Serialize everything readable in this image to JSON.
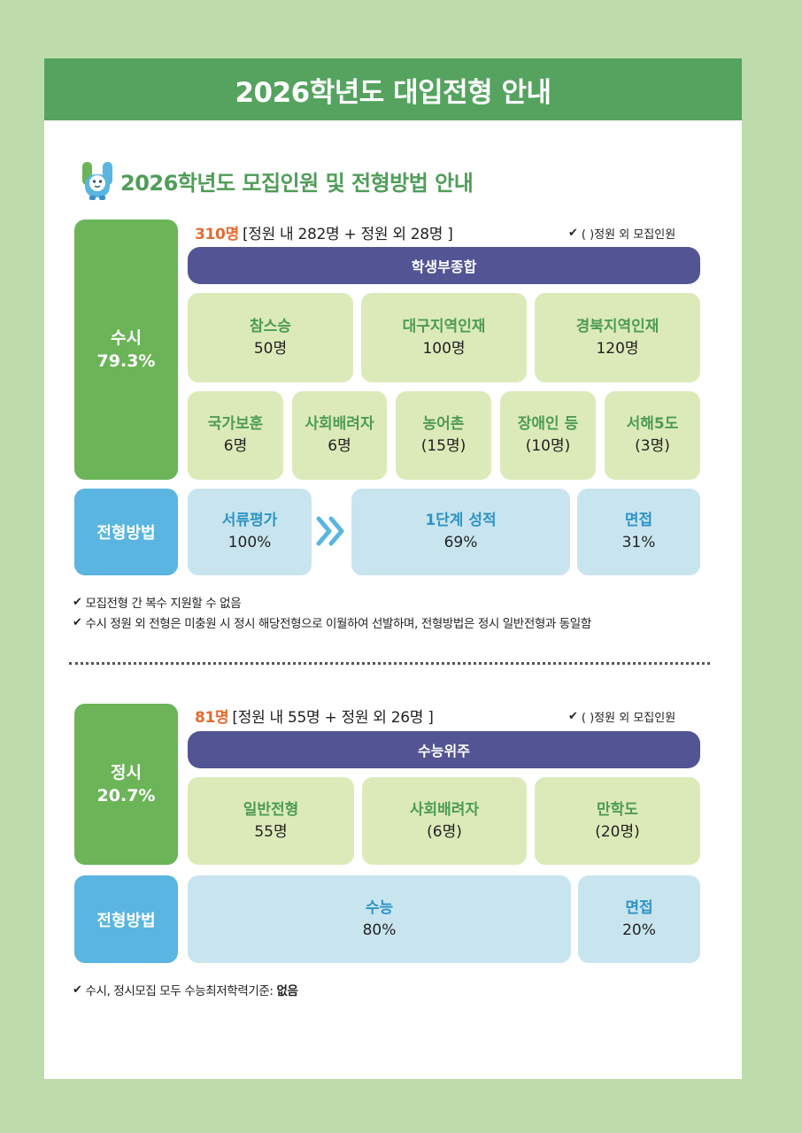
{
  "title": "2026학년도 대입전형 안내",
  "subtitle": "2026학년도 모집인원 및 전형방법 안내",
  "legend_text": "( )정원 외 모집인원",
  "susi": {
    "label": "수시",
    "percent": "79.3%",
    "total": "310명",
    "breakdown": "[정원 내 282명 + 정원 외 28명 ]",
    "category": "학생부종합",
    "row1": [
      {
        "name": "참스승",
        "count": "50명"
      },
      {
        "name": "대구지역인재",
        "count": "100명"
      },
      {
        "name": "경북지역인재",
        "count": "120명"
      }
    ],
    "row2": [
      {
        "name": "국가보훈",
        "count": "6명"
      },
      {
        "name": "사회배려자",
        "count": "6명"
      },
      {
        "name": "농어촌",
        "count": "(15명)"
      },
      {
        "name": "장애인 등",
        "count": "(10명)"
      },
      {
        "name": "서해5도",
        "count": "(3명)"
      }
    ],
    "method_label": "전형방법",
    "methods": [
      {
        "name": "서류평가",
        "value": "100%"
      },
      {
        "name": "1단계 성적",
        "value": "69%"
      },
      {
        "name": "면접",
        "value": "31%"
      }
    ],
    "notes": [
      "모집전형 간 복수 지원할 수 없음",
      "수시 정원 외 전형은 미충원 시 정시 해당전형으로 이월하여 선발하며, 전형방법은 정시 일반전형과 동일함"
    ]
  },
  "jeongsi": {
    "label": "정시",
    "percent": "20.7%",
    "total": "81명",
    "breakdown": "[정원 내 55명 + 정원 외 26명 ]",
    "category": "수능위주",
    "row1": [
      {
        "name": "일반전형",
        "count": "55명"
      },
      {
        "name": "사회배려자",
        "count": "(6명)"
      },
      {
        "name": "만학도",
        "count": "(20명)"
      }
    ],
    "method_label": "전형방법",
    "methods": [
      {
        "name": "수능",
        "value": "80%"
      },
      {
        "name": "면접",
        "value": "20%"
      }
    ],
    "final_note_prefix": "수시, 정시모집 모두 수능최저학력기준: ",
    "final_note_bold": "없음"
  }
}
